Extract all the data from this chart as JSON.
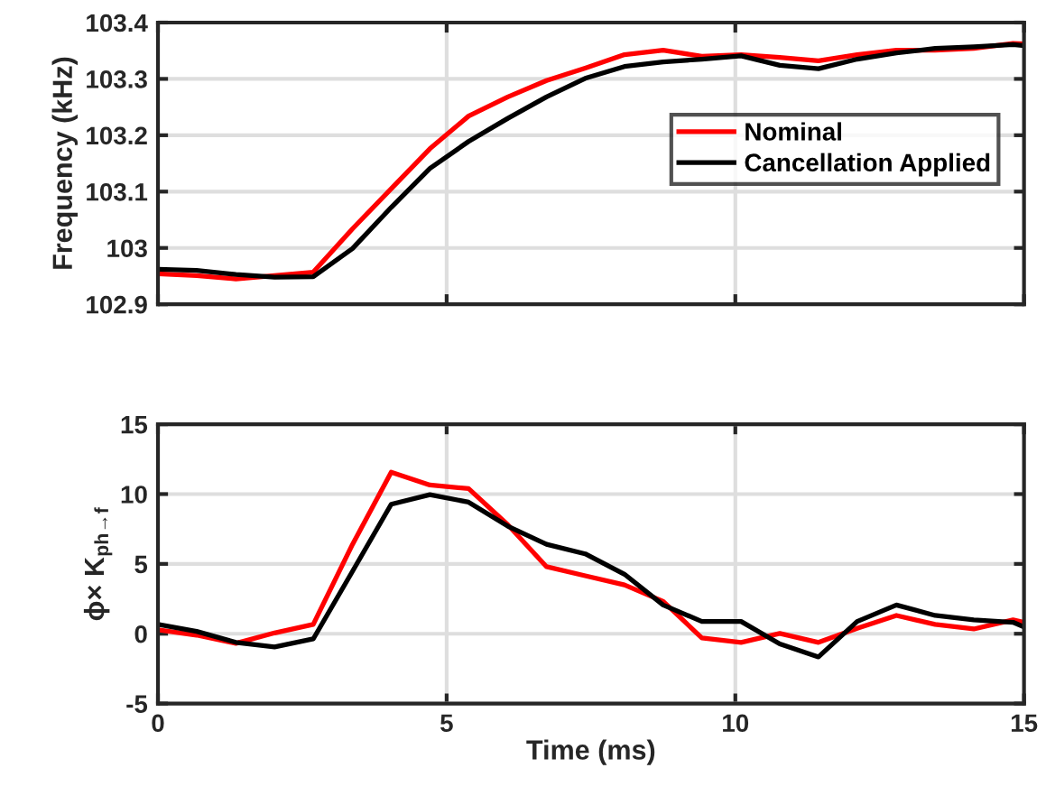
{
  "chart_data": [
    {
      "type": "line",
      "ylabel": "Frequency (kHz)",
      "x": [
        0,
        0.67,
        1.35,
        2.02,
        2.69,
        3.37,
        4.04,
        4.71,
        5.38,
        6.06,
        6.73,
        7.4,
        8.08,
        8.75,
        9.42,
        10.1,
        10.77,
        11.44,
        12.11,
        12.79,
        13.46,
        14.13,
        14.81,
        15
      ],
      "series": [
        {
          "name": "Nominal",
          "color": "#ff0000",
          "values": [
            102.954,
            102.951,
            102.945,
            102.951,
            102.957,
            103.034,
            103.105,
            103.176,
            103.234,
            103.268,
            103.297,
            103.319,
            103.343,
            103.351,
            103.34,
            103.343,
            103.338,
            103.332,
            103.343,
            103.351,
            103.351,
            103.354,
            103.363,
            103.362
          ]
        },
        {
          "name": "Cancellation Applied",
          "color": "#000000",
          "values": [
            102.962,
            102.96,
            102.953,
            102.948,
            102.949,
            102.999,
            103.072,
            103.141,
            103.189,
            103.23,
            103.268,
            103.301,
            103.322,
            103.33,
            103.335,
            103.341,
            103.324,
            103.318,
            103.335,
            103.346,
            103.354,
            103.357,
            103.361,
            103.359
          ]
        }
      ],
      "xlim": [
        0,
        15
      ],
      "xticks": [
        0,
        5,
        10,
        15
      ],
      "ylim": [
        102.9,
        103.4
      ],
      "yticks": [
        102.9,
        103,
        103.1,
        103.2,
        103.3,
        103.4
      ],
      "tick_labels": "y",
      "grid": true,
      "legend": "right",
      "line_style": "solid",
      "marker": "none"
    },
    {
      "type": "line",
      "xlabel": "Time (ms)",
      "ylabel": "ϕ× K$_{ph→f}$",
      "x": [
        0,
        0.67,
        1.35,
        2.02,
        2.69,
        3.37,
        4.04,
        4.71,
        5.38,
        6.06,
        6.73,
        7.4,
        8.08,
        8.75,
        9.42,
        10.1,
        10.77,
        11.44,
        12.11,
        12.79,
        13.46,
        14.13,
        14.81,
        15
      ],
      "series": [
        {
          "color": "#ff0000",
          "values": [
            0.28,
            -0.1,
            -0.69,
            0.06,
            0.67,
            6.4,
            11.57,
            10.65,
            10.39,
            7.8,
            4.8,
            4.15,
            3.5,
            2.32,
            -0.3,
            -0.62,
            0.02,
            -0.62,
            0.39,
            1.31,
            0.67,
            0.34,
            0.99,
            0.82
          ]
        },
        {
          "color": "#000000",
          "values": [
            0.67,
            0.17,
            -0.62,
            -0.95,
            -0.37,
            4.47,
            9.27,
            9.96,
            9.42,
            7.7,
            6.4,
            5.72,
            4.26,
            2.06,
            0.88,
            0.88,
            -0.73,
            -1.66,
            0.88,
            2.06,
            1.31,
            0.99,
            0.82,
            0.49
          ]
        }
      ],
      "xlim": [
        0,
        15
      ],
      "xticks": [
        0,
        5,
        10,
        15
      ],
      "ylim": [
        -5,
        15
      ],
      "yticks": [
        -5,
        0,
        5,
        10,
        15
      ],
      "grid": true,
      "line_style": "solid",
      "marker": "none"
    }
  ]
}
